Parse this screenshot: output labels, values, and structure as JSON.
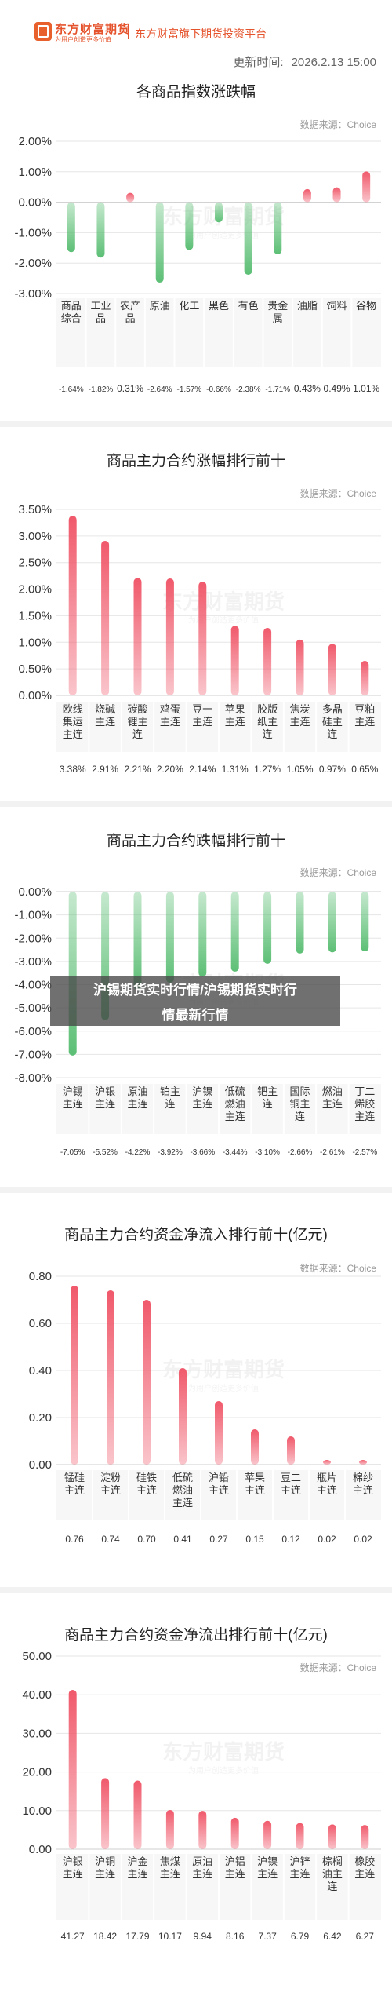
{
  "header": {
    "brand": "东方财富期货",
    "brand_slogan": "为用户创造更多价值",
    "platform": "东方财富旗下期货投资平台",
    "update_label": "更新时间:",
    "update_time": "2026.2.13 15:00"
  },
  "overlay": {
    "line1": "沪锡期货实时行情/沪锡期货实时行",
    "line2": "情最新行情"
  },
  "watermark": {
    "text": "东方财富期货",
    "sub": "为用户创造更多价值"
  },
  "colors": {
    "accent": "#e5532c",
    "rise": "#f0596b",
    "fall": "#5cbf75"
  },
  "sections": [
    {
      "title": "各商品指数涨跌幅",
      "source": "数据来源：Choice"
    },
    {
      "title": "商品主力合约涨幅排行前十",
      "source": "数据来源：Choice"
    },
    {
      "title": "商品主力合约跌幅排行前十",
      "source": "数据来源：Choice"
    },
    {
      "title": "商品主力合约资金净流入排行前十(亿元)",
      "source": "数据来源：Choice"
    },
    {
      "title": "商品主力合约资金净流出排行前十(亿元)",
      "source": "数据来源：Choice"
    }
  ],
  "chart_data": [
    {
      "type": "bar",
      "title": "各商品指数涨跌幅",
      "categories": [
        "商品综合",
        "工业品",
        "农产品",
        "原油",
        "化工",
        "黑色",
        "有色",
        "贵金属",
        "油脂",
        "饲料",
        "谷物"
      ],
      "values": [
        -1.64,
        -1.82,
        0.31,
        -2.64,
        -1.57,
        -0.66,
        -2.38,
        -1.71,
        0.43,
        0.49,
        1.01
      ],
      "value_labels": [
        "-1.64%",
        "-1.82%",
        "0.31%",
        "-2.64%",
        "-1.57%",
        "-0.66%",
        "-2.38%",
        "-1.71%",
        "0.43%",
        "0.49%",
        "1.01%"
      ],
      "yticks": [
        "2.00%",
        "1.00%",
        "0.00%",
        "-1.00%",
        "-2.00%",
        "-3.00%"
      ],
      "ylim": [
        -3,
        2
      ],
      "grid": true
    },
    {
      "type": "bar",
      "title": "商品主力合约涨幅排行前十",
      "categories": [
        "欧线集运主连",
        "烧碱主连",
        "碳酸锂主连",
        "鸡蛋主连",
        "豆一主连",
        "苹果主连",
        "胶版纸主连",
        "焦炭主连",
        "多晶硅主连",
        "豆粕主连"
      ],
      "values": [
        3.38,
        2.91,
        2.21,
        2.2,
        2.14,
        1.31,
        1.27,
        1.05,
        0.97,
        0.65
      ],
      "value_labels": [
        "3.38%",
        "2.91%",
        "2.21%",
        "2.20%",
        "2.14%",
        "1.31%",
        "1.27%",
        "1.05%",
        "0.97%",
        "0.65%"
      ],
      "yticks": [
        "3.50%",
        "3.00%",
        "2.50%",
        "2.00%",
        "1.50%",
        "1.00%",
        "0.50%",
        "0.00%"
      ],
      "ylim": [
        0,
        3.5
      ],
      "grid": true
    },
    {
      "type": "bar",
      "title": "商品主力合约跌幅排行前十",
      "categories": [
        "沪锡主连",
        "沪银主连",
        "原油主连",
        "铂主连",
        "沪镍主连",
        "低硫燃油主连",
        "钯主连",
        "国际铜主连",
        "燃油主连",
        "丁二烯胶主连"
      ],
      "values": [
        -7.05,
        -5.52,
        -4.22,
        -3.92,
        -3.66,
        -3.44,
        -3.1,
        -2.66,
        -2.61,
        -2.57
      ],
      "value_labels": [
        "-7.05%",
        "-5.52%",
        "-4.22%",
        "-3.92%",
        "-3.66%",
        "-3.44%",
        "-3.10%",
        "-2.66%",
        "-2.61%",
        "-2.57%"
      ],
      "yticks": [
        "0.00%",
        "-1.00%",
        "-2.00%",
        "-3.00%",
        "-4.00%",
        "-5.00%",
        "-6.00%",
        "-7.00%",
        "-8.00%"
      ],
      "ylim": [
        -8,
        0
      ],
      "grid": true
    },
    {
      "type": "bar",
      "title": "商品主力合约资金净流入排行前十(亿元)",
      "categories": [
        "锰硅主连",
        "淀粉主连",
        "硅铁主连",
        "低硫燃油主连",
        "沪铅主连",
        "苹果主连",
        "豆二主连",
        "瓶片主连",
        "棉纱主连"
      ],
      "values": [
        0.76,
        0.74,
        0.7,
        0.41,
        0.27,
        0.15,
        0.12,
        0.02,
        0.02
      ],
      "value_labels": [
        "0.76",
        "0.74",
        "0.70",
        "0.41",
        "0.27",
        "0.15",
        "0.12",
        "0.02",
        "0.02"
      ],
      "yticks": [
        "0.80",
        "0.60",
        "0.40",
        "0.20",
        "0.00"
      ],
      "ylim": [
        0,
        0.8
      ],
      "grid": true
    },
    {
      "type": "bar",
      "title": "商品主力合约资金净流出排行前十(亿元)",
      "categories": [
        "沪银主连",
        "沪铜主连",
        "沪金主连",
        "焦煤主连",
        "原油主连",
        "沪铝主连",
        "沪镍主连",
        "沪锌主连",
        "棕榈油主连",
        "橡胶主连"
      ],
      "values": [
        41.27,
        18.42,
        17.79,
        10.17,
        9.94,
        8.16,
        7.37,
        6.79,
        6.42,
        6.27
      ],
      "value_labels": [
        "41.27",
        "18.42",
        "17.79",
        "10.17",
        "9.94",
        "8.16",
        "7.37",
        "6.79",
        "6.42",
        "6.27"
      ],
      "yticks": [
        "50.00",
        "40.00",
        "30.00",
        "20.00",
        "10.00",
        "0.00"
      ],
      "ylim": [
        0,
        50
      ],
      "grid": true
    }
  ]
}
